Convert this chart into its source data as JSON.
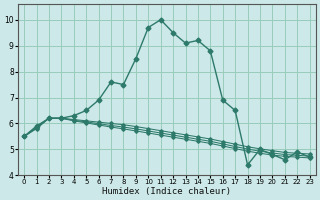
{
  "xlabel": "Humidex (Indice chaleur)",
  "bg_color": "#cce8e8",
  "grid_color": "#99ccbb",
  "line_color": "#2d7a6a",
  "xlim": [
    -0.5,
    23.5
  ],
  "ylim": [
    4.0,
    10.6
  ],
  "yticks": [
    4,
    5,
    6,
    7,
    8,
    9,
    10
  ],
  "xticks": [
    0,
    1,
    2,
    3,
    4,
    5,
    6,
    7,
    8,
    9,
    10,
    11,
    12,
    13,
    14,
    15,
    16,
    17,
    18,
    19,
    20,
    21,
    22,
    23
  ],
  "lines": [
    {
      "x": [
        0,
        1,
        2,
        3,
        4,
        5,
        6,
        7,
        8,
        9,
        10,
        11,
        12,
        13,
        14,
        15,
        16,
        17,
        18,
        19,
        20,
        21,
        22,
        23
      ],
      "y": [
        5.5,
        5.9,
        6.2,
        6.2,
        6.3,
        6.5,
        6.9,
        7.6,
        7.5,
        8.5,
        9.7,
        10.0,
        9.5,
        9.1,
        9.2,
        8.8,
        6.9,
        6.5,
        4.4,
        5.0,
        4.8,
        4.6,
        4.9,
        4.7
      ]
    },
    {
      "x": [
        0,
        1,
        2,
        3,
        4,
        5,
        6,
        7,
        8,
        9,
        10,
        11,
        12,
        13,
        14,
        15,
        16,
        17,
        18,
        19,
        20,
        21,
        22,
        23
      ],
      "y": [
        5.5,
        5.85,
        6.2,
        6.2,
        6.15,
        6.1,
        6.05,
        6.0,
        5.95,
        5.88,
        5.8,
        5.72,
        5.64,
        5.56,
        5.48,
        5.4,
        5.3,
        5.2,
        5.1,
        5.02,
        4.95,
        4.88,
        4.85,
        4.82
      ]
    },
    {
      "x": [
        0,
        1,
        2,
        3,
        4,
        5,
        6,
        7,
        8,
        9,
        10,
        11,
        12,
        13,
        14,
        15,
        16,
        17,
        18,
        19,
        20,
        21,
        22,
        23
      ],
      "y": [
        5.5,
        5.82,
        6.2,
        6.2,
        6.12,
        6.06,
        5.99,
        5.92,
        5.86,
        5.79,
        5.71,
        5.63,
        5.55,
        5.47,
        5.39,
        5.31,
        5.21,
        5.11,
        5.01,
        4.93,
        4.86,
        4.8,
        4.77,
        4.74
      ]
    },
    {
      "x": [
        0,
        1,
        2,
        3,
        4,
        5,
        6,
        7,
        8,
        9,
        10,
        11,
        12,
        13,
        14,
        15,
        16,
        17,
        18,
        19,
        20,
        21,
        22,
        23
      ],
      "y": [
        5.5,
        5.8,
        6.2,
        6.2,
        6.1,
        6.02,
        5.94,
        5.86,
        5.79,
        5.71,
        5.63,
        5.55,
        5.47,
        5.39,
        5.31,
        5.23,
        5.13,
        5.03,
        4.93,
        4.85,
        4.78,
        4.73,
        4.7,
        4.67
      ]
    }
  ]
}
